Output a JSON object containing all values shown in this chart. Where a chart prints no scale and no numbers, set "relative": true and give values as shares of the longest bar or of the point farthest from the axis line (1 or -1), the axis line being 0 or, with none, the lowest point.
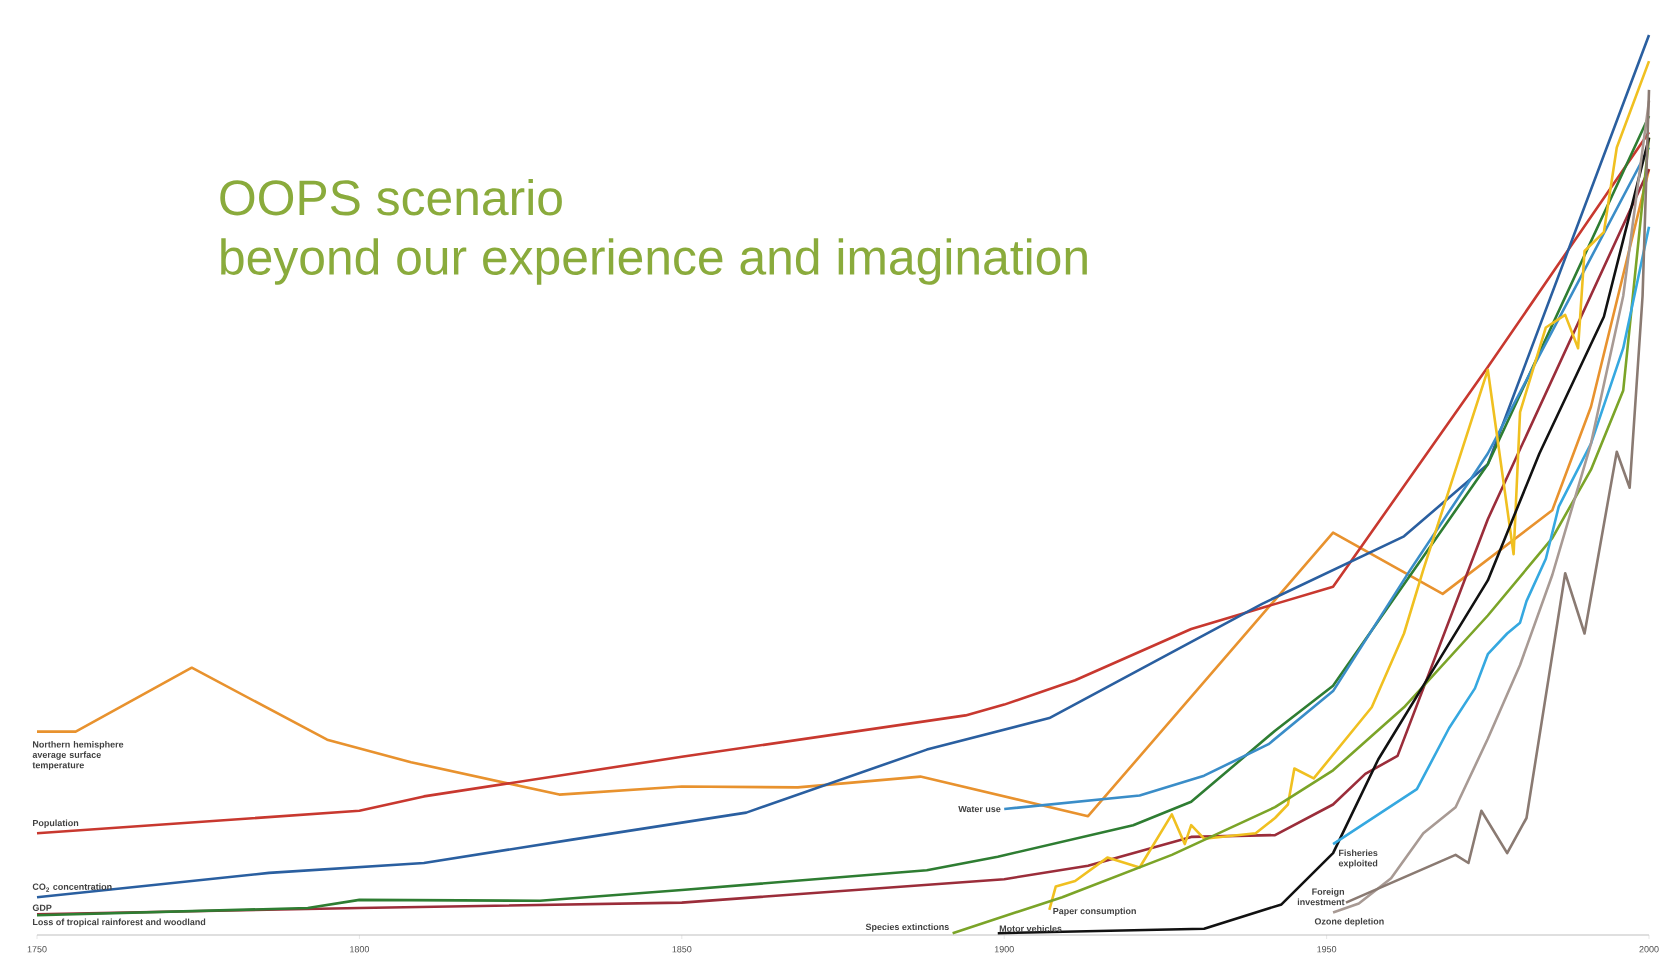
{
  "chart_data": {
    "type": "line",
    "title": "OOPS scenario",
    "subtitle": "beyond our experience and imagination",
    "relative": true,
    "marker": "none",
    "line_style": "solid",
    "xlim": [
      1750,
      2000
    ],
    "xticks": [
      1750,
      1800,
      1850,
      1900,
      1950,
      2000
    ],
    "series": [
      {
        "name": "Northern hemisphere average surface temperature",
        "color": "#e8922e",
        "x": [
          1750,
          1756,
          1774,
          1795,
          1808,
          1831,
          1850,
          1868,
          1887,
          1913,
          1951,
          1968,
          1985,
          1991,
          2000
        ],
        "values": [
          0.226,
          0.226,
          0.297,
          0.217,
          0.192,
          0.156,
          0.165,
          0.164,
          0.176,
          0.132,
          0.447,
          0.379,
          0.472,
          0.587,
          0.851
        ]
      },
      {
        "name": "Population",
        "color": "#c8382f",
        "x": [
          1750,
          1800,
          1810,
          1850,
          1894,
          1900,
          1911,
          1929,
          1951,
          1975,
          2000
        ],
        "values": [
          0.113,
          0.138,
          0.154,
          0.198,
          0.244,
          0.256,
          0.283,
          0.34,
          0.387,
          0.631,
          0.892
        ]
      },
      {
        "name": "CO$_{2}$ concentration",
        "color": "#2a5fa0",
        "x": [
          1750,
          1786,
          1810,
          1833,
          1860,
          1888,
          1907,
          1940,
          1962,
          1975,
          2000
        ],
        "values": [
          0.042,
          0.069,
          0.08,
          0.106,
          0.136,
          0.206,
          0.241,
          0.368,
          0.443,
          0.523,
          1.0
        ]
      },
      {
        "name": "GDP",
        "color": "#9b2d3a",
        "x": [
          1750,
          1800,
          1850,
          1900,
          1913,
          1929,
          1942,
          1951,
          1956,
          1961,
          1975,
          2000
        ],
        "values": [
          0.023,
          0.03,
          0.036,
          0.062,
          0.077,
          0.109,
          0.111,
          0.145,
          0.179,
          0.199,
          0.462,
          0.851
        ]
      },
      {
        "name": "Loss of tropical rainforest and woodland",
        "color": "#2e7d32",
        "x": [
          1750,
          1792,
          1800,
          1828,
          1850,
          1888,
          1899,
          1920,
          1929,
          1942,
          1951,
          1975,
          2000
        ],
        "values": [
          0.022,
          0.03,
          0.039,
          0.038,
          0.05,
          0.072,
          0.087,
          0.122,
          0.148,
          0.227,
          0.277,
          0.523,
          0.91
        ]
      },
      {
        "name": "Water use",
        "color": "#3a8dc8",
        "x": [
          1900,
          1921,
          1931,
          1941,
          1951,
          1963,
          1975,
          2000
        ],
        "values": [
          0.14,
          0.155,
          0.177,
          0.212,
          0.271,
          0.406,
          0.535,
          0.875
        ]
      },
      {
        "name": "Paper consumption",
        "color": "#f0c020",
        "x": [
          1907,
          1908,
          1911,
          1916,
          1921,
          1926,
          1928,
          1929,
          1931,
          1939,
          1942,
          1944,
          1945,
          1948,
          1957,
          1962,
          1965,
          1975,
          1979,
          1980,
          1984,
          1987,
          1989,
          1990,
          1993,
          1995,
          2000
        ],
        "values": [
          0.028,
          0.054,
          0.06,
          0.086,
          0.075,
          0.134,
          0.101,
          0.122,
          0.107,
          0.113,
          0.13,
          0.145,
          0.185,
          0.174,
          0.253,
          0.335,
          0.406,
          0.628,
          0.423,
          0.581,
          0.675,
          0.689,
          0.652,
          0.76,
          0.781,
          0.875,
          0.971
        ]
      },
      {
        "name": "Species extinctions",
        "color": "#7ba428",
        "x": [
          1892,
          1909,
          1926,
          1942,
          1951,
          1962,
          1975,
          1985,
          1991,
          1996,
          2000
        ],
        "values": [
          0.002,
          0.042,
          0.089,
          0.142,
          0.183,
          0.253,
          0.355,
          0.441,
          0.517,
          0.605,
          0.886
        ]
      },
      {
        "name": "Motor vehicles",
        "color": "#111111",
        "x": [
          1899,
          1931,
          1943,
          1951,
          1958,
          1965,
          1975,
          1983,
          1993,
          2000
        ],
        "values": [
          0.002,
          0.007,
          0.034,
          0.091,
          0.195,
          0.277,
          0.394,
          0.535,
          0.687,
          0.886
        ]
      },
      {
        "name": "Fisheries exploited",
        "color": "#35a8e0",
        "x": [
          1951,
          1964,
          1969,
          1973,
          1975,
          1978,
          1980,
          1981,
          1984,
          1986,
          1991,
          1996,
          2000
        ],
        "values": [
          0.101,
          0.162,
          0.23,
          0.274,
          0.312,
          0.335,
          0.347,
          0.371,
          0.418,
          0.476,
          0.546,
          0.652,
          0.787
        ]
      },
      {
        "name": "Ozone depletion",
        "color": "#a89a94",
        "x": [
          1951,
          1955,
          1960,
          1965,
          1970,
          1975,
          1980,
          1985,
          1991,
          1996,
          2000
        ],
        "values": [
          0.025,
          0.035,
          0.063,
          0.113,
          0.142,
          0.218,
          0.3,
          0.4,
          0.546,
          0.71,
          0.927
        ]
      },
      {
        "name": "Foreign investment",
        "color": "#8a7a72",
        "x": [
          1953,
          1970,
          1972,
          1974,
          1978,
          1981,
          1987,
          1990,
          1995,
          1997,
          1999,
          2000
        ],
        "values": [
          0.036,
          0.089,
          0.08,
          0.138,
          0.091,
          0.13,
          0.402,
          0.335,
          0.537,
          0.497,
          0.71,
          0.939
        ]
      }
    ]
  }
}
